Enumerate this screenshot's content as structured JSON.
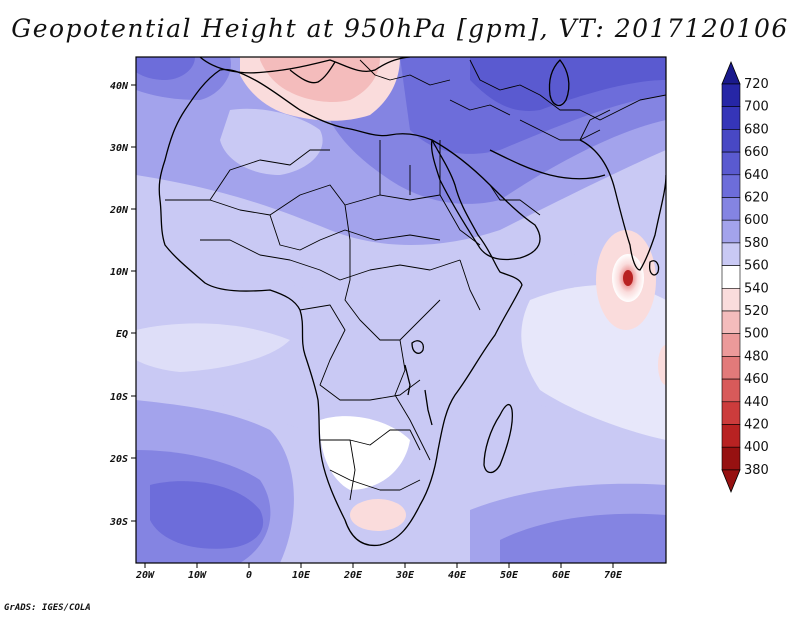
{
  "title": "Geopotential Height at 950hPa [gpm], VT: 2017120106",
  "credit": "GrADS: IGES/COLA",
  "lon_ticks": [
    "20W",
    "10W",
    "0",
    "10E",
    "20E",
    "30E",
    "40E",
    "50E",
    "60E",
    "70E"
  ],
  "lat_ticks": [
    "40N",
    "30N",
    "20N",
    "10N",
    "EQ",
    "10S",
    "20S",
    "30S"
  ],
  "colorbar": {
    "levels": [
      "720",
      "700",
      "680",
      "660",
      "640",
      "620",
      "600",
      "580",
      "560",
      "540",
      "520",
      "500",
      "480",
      "460",
      "440",
      "420",
      "400",
      "380"
    ],
    "colors": [
      "#1a1a8c",
      "#2626a6",
      "#3535b8",
      "#4848c4",
      "#5a5ad0",
      "#6d6dda",
      "#8484e2",
      "#a3a3ec",
      "#c9c9f4",
      "#ffffff",
      "#fadcdc",
      "#f4bcbc",
      "#ec9a9a",
      "#e27a7a",
      "#d85a5a",
      "#cc3c3c",
      "#b82222",
      "#961111"
    ]
  },
  "field": {
    "variable": "Geopotential Height",
    "level": "950hPa",
    "units": "gpm",
    "valid_time": "2017120106"
  }
}
